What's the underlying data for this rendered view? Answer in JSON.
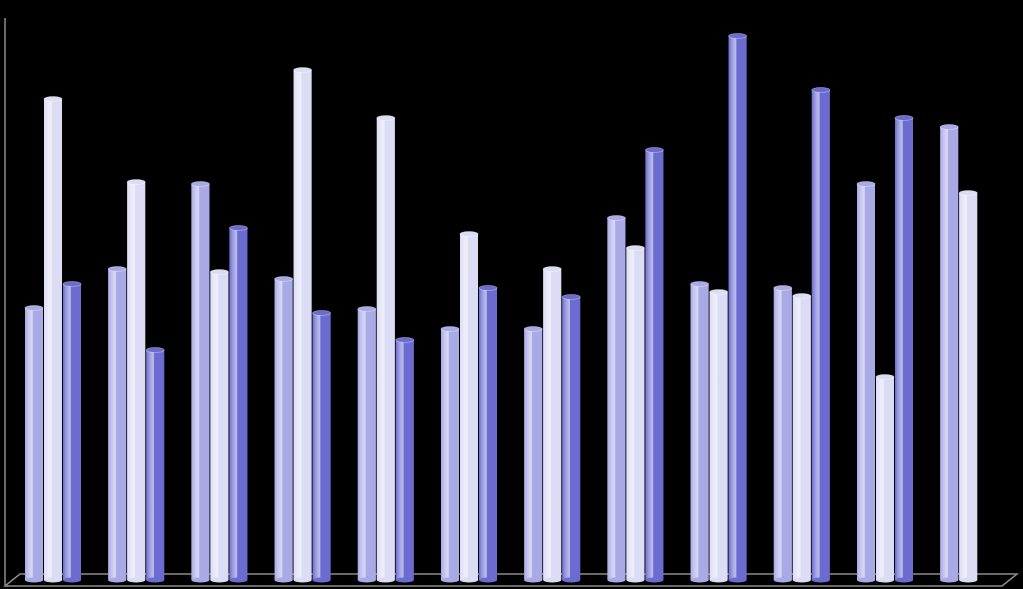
{
  "chart_data": {
    "type": "bar",
    "categories": [
      null,
      null,
      null,
      null,
      null,
      null,
      null,
      null,
      null,
      null,
      null,
      null
    ],
    "series": [
      {
        "color": "#a9a9e6",
        "values": [
          272,
          311,
          396,
          301,
          271,
          251,
          251,
          362,
          296,
          292,
          396,
          453
        ]
      },
      {
        "color": "#dcdcf5",
        "values": [
          481,
          398,
          308,
          510,
          462,
          346,
          311,
          332,
          288,
          284,
          203,
          387
        ]
      },
      {
        "color": "#6b6bd0",
        "values": [
          296,
          230,
          352,
          267,
          240,
          292,
          283,
          430,
          544,
          490,
          462,
          null
        ]
      }
    ],
    "ylim": [
      0,
      550
    ]
  }
}
